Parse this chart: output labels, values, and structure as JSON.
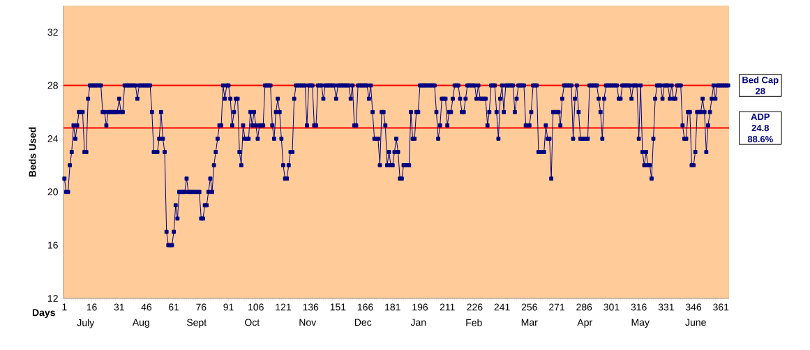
{
  "chart_data": {
    "type": "line",
    "xlabel": "Days",
    "ylabel": "Beds Used",
    "marker": "square",
    "x": [
      1,
      2,
      3,
      4,
      5,
      6,
      7,
      8,
      9,
      10,
      11,
      12,
      13,
      14,
      15,
      16,
      17,
      18,
      19,
      20,
      21,
      22,
      23,
      24,
      25,
      26,
      27,
      28,
      29,
      30,
      31,
      32,
      33,
      34,
      35,
      36,
      37,
      38,
      39,
      40,
      41,
      42,
      43,
      44,
      45,
      46,
      47,
      48,
      49,
      50,
      51,
      52,
      53,
      54,
      55,
      56,
      57,
      58,
      59,
      60,
      61,
      62,
      63,
      64,
      65,
      66,
      67,
      68,
      69,
      70,
      71,
      72,
      73,
      74,
      75,
      76,
      77,
      78,
      79,
      80,
      81,
      82,
      83,
      84,
      85,
      86,
      87,
      88,
      89,
      90,
      91,
      92,
      93,
      94,
      95,
      96,
      97,
      98,
      99,
      100,
      101,
      102,
      103,
      104,
      105,
      106,
      107,
      108,
      109,
      110,
      111,
      112,
      113,
      114,
      115,
      116,
      117,
      118,
      119,
      120,
      121,
      122,
      123,
      124,
      125,
      126,
      127,
      128,
      129,
      130,
      131,
      132,
      133,
      134,
      135,
      136,
      137,
      138,
      139,
      140,
      141,
      142,
      143,
      144,
      145,
      146,
      147,
      148,
      149,
      150,
      151,
      152,
      153,
      154,
      155,
      156,
      157,
      158,
      159,
      160,
      161,
      162,
      163,
      164,
      165,
      166,
      167,
      168,
      169,
      170,
      171,
      172,
      173,
      174,
      175,
      176,
      177,
      178,
      179,
      180,
      181,
      182,
      183,
      184,
      185,
      186,
      187,
      188,
      189,
      190,
      191,
      192,
      193,
      194,
      195,
      196,
      197,
      198,
      199,
      200,
      201,
      202,
      203,
      204,
      205,
      206,
      207,
      208,
      209,
      210,
      211,
      212,
      213,
      214,
      215,
      216,
      217,
      218,
      219,
      220,
      221,
      222,
      223,
      224,
      225,
      226,
      227,
      228,
      229,
      230,
      231,
      232,
      233,
      234,
      235,
      236,
      237,
      238,
      239,
      240,
      241,
      242,
      243,
      244,
      245,
      246,
      247,
      248,
      249,
      250,
      251,
      252,
      253,
      254,
      255,
      256,
      257,
      258,
      259,
      260,
      261,
      262,
      263,
      264,
      265,
      266,
      267,
      268,
      269,
      270,
      271,
      272,
      273,
      274,
      275,
      276,
      277,
      278,
      279,
      280,
      281,
      282,
      283,
      284,
      285,
      286,
      287,
      288,
      289,
      290,
      291,
      292,
      293,
      294,
      295,
      296,
      297,
      298,
      299,
      300,
      301,
      302,
      303,
      304,
      305,
      306,
      307,
      308,
      309,
      310,
      311,
      312,
      313,
      314,
      315,
      316,
      317,
      318,
      319,
      320,
      321,
      322,
      323,
      324,
      325,
      326,
      327,
      328,
      329,
      330,
      331,
      332,
      333,
      334,
      335,
      336,
      337,
      338,
      339,
      340,
      341,
      342,
      343,
      344,
      345,
      346,
      347,
      348,
      349,
      350,
      351,
      352,
      353,
      354,
      355,
      356,
      357,
      358,
      359,
      360,
      361,
      362,
      363,
      364,
      365
    ],
    "series": [
      {
        "color": "#000080",
        "values": [
          21,
          20,
          20,
          22,
          23,
          25,
          24,
          25,
          26,
          26,
          26,
          23,
          23,
          27,
          28,
          28,
          28,
          28,
          28,
          28,
          28,
          26,
          26,
          25,
          26,
          26,
          26,
          26,
          26,
          26,
          27,
          26,
          26,
          28,
          28,
          28,
          28,
          28,
          28,
          28,
          27,
          28,
          28,
          28,
          28,
          28,
          28,
          28,
          26,
          23,
          23,
          23,
          24,
          26,
          24,
          23,
          17,
          16,
          16,
          16,
          17,
          19,
          18,
          20,
          20,
          20,
          20,
          21,
          20,
          20,
          20,
          20,
          20,
          20,
          20,
          18,
          18,
          19,
          19,
          20,
          21,
          20,
          22,
          23,
          24,
          25,
          25,
          28,
          27,
          28,
          28,
          27,
          25,
          26,
          27,
          27,
          23,
          22,
          25,
          24,
          24,
          24,
          26,
          25,
          26,
          25,
          24,
          25,
          25,
          25,
          28,
          28,
          28,
          28,
          25,
          24,
          26,
          27,
          26,
          24,
          22,
          21,
          21,
          22,
          23,
          23,
          27,
          28,
          28,
          28,
          28,
          28,
          28,
          25,
          28,
          28,
          28,
          25,
          25,
          28,
          28,
          28,
          27,
          28,
          28,
          28,
          28,
          28,
          28,
          27,
          28,
          28,
          28,
          28,
          28,
          28,
          28,
          27,
          28,
          25,
          25,
          28,
          28,
          28,
          28,
          28,
          28,
          27,
          28,
          26,
          24,
          24,
          24,
          22,
          26,
          26,
          25,
          22,
          23,
          22,
          22,
          23,
          24,
          23,
          21,
          21,
          22,
          22,
          22,
          22,
          26,
          24,
          24,
          26,
          26,
          28,
          28,
          28,
          28,
          28,
          28,
          28,
          28,
          28,
          26,
          24,
          25,
          27,
          27,
          27,
          25,
          26,
          26,
          27,
          28,
          28,
          28,
          27,
          26,
          26,
          27,
          28,
          28,
          28,
          28,
          28,
          27,
          28,
          27,
          27,
          27,
          27,
          25,
          26,
          28,
          28,
          28,
          26,
          24,
          27,
          28,
          26,
          28,
          28,
          28,
          28,
          28,
          26,
          27,
          28,
          28,
          28,
          28,
          25,
          25,
          25,
          26,
          28,
          28,
          28,
          23,
          23,
          23,
          23,
          25,
          24,
          24,
          21,
          26,
          26,
          26,
          26,
          25,
          27,
          28,
          28,
          28,
          28,
          28,
          24,
          27,
          28,
          26,
          24,
          24,
          24,
          24,
          24,
          28,
          28,
          28,
          28,
          28,
          27,
          26,
          24,
          27,
          28,
          28,
          28,
          28,
          28,
          28,
          28,
          27,
          27,
          28,
          28,
          28,
          28,
          28,
          27,
          28,
          28,
          28,
          24,
          28,
          23,
          22,
          23,
          22,
          22,
          21,
          24,
          27,
          28,
          28,
          28,
          27,
          28,
          28,
          28,
          27,
          28,
          27,
          27,
          28,
          28,
          28,
          25,
          24,
          24,
          26,
          26,
          22,
          22,
          23,
          26,
          26,
          26,
          27,
          26,
          23,
          25,
          26,
          27,
          28,
          27,
          28,
          28,
          28,
          28,
          28,
          28,
          28
        ]
      }
    ],
    "xlim": [
      0.5,
      365.5
    ],
    "ylim": [
      12,
      34
    ],
    "xticks": [
      1,
      16,
      31,
      46,
      61,
      76,
      91,
      106,
      121,
      136,
      151,
      166,
      181,
      196,
      211,
      226,
      241,
      256,
      271,
      286,
      301,
      316,
      331,
      346,
      361
    ],
    "yticks": [
      12,
      16,
      20,
      24,
      28,
      32
    ],
    "annotations": [
      "July",
      "Aug",
      "Sept",
      "Oct",
      "Nov",
      "Dec",
      "Jan",
      "Feb",
      "Mar",
      "Apr",
      "May",
      "June"
    ],
    "ref_lines": [
      {
        "axis": "y",
        "value": 28,
        "label": "Bed Cap 28",
        "color": "#ff0000"
      },
      {
        "axis": "y",
        "value": 24.8,
        "label": "ADP 24.8 88.6%",
        "color": "#ff0000"
      }
    ]
  }
}
